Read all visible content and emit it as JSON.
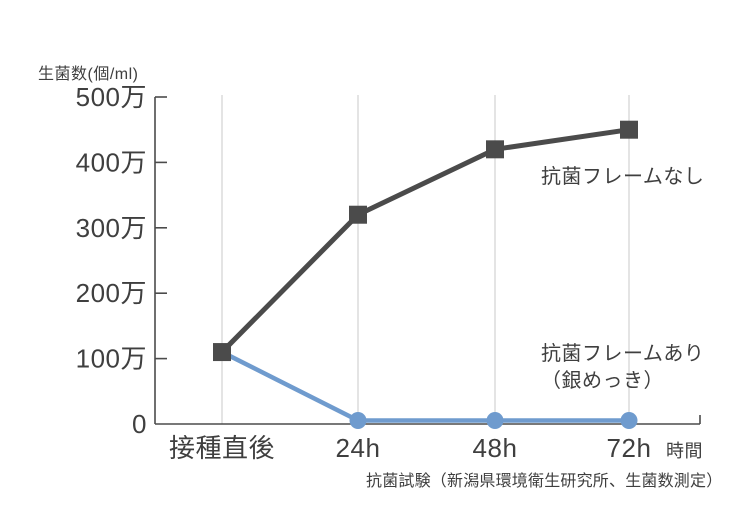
{
  "colors": {
    "background": "#ffffff",
    "axis": "#4b4b4b",
    "grid": "#dcdcdc",
    "text": "#3f3f3f",
    "series_no_frame": "#4b4b4b",
    "series_with_frame": "#6f9bce"
  },
  "chart_data": {
    "type": "line",
    "title": "",
    "ylabel": "生菌数(個/ml)",
    "xlabel": "時間",
    "categories": [
      "接種直後",
      "24h",
      "48h",
      "72h"
    ],
    "y_ticks": [
      {
        "label": "500万",
        "value": 5000000
      },
      {
        "label": "400万",
        "value": 4000000
      },
      {
        "label": "300万",
        "value": 3000000
      },
      {
        "label": "200万",
        "value": 2000000
      },
      {
        "label": "100万",
        "value": 1000000
      },
      {
        "label": "0",
        "value": 0
      }
    ],
    "ylim": [
      0,
      5000000
    ],
    "grid": "vertical light gray lines at each x category",
    "legend_position": "inline annotations right of lines",
    "series": [
      {
        "name": "抗菌フレームなし",
        "marker": "square",
        "color": "#4b4b4b",
        "values": [
          1100000,
          3200000,
          4200000,
          4500000
        ]
      },
      {
        "name": "抗菌フレームあり（銀めっき）",
        "marker": "circle",
        "color": "#6f9bce",
        "values": [
          1100000,
          0,
          0,
          0
        ]
      }
    ]
  },
  "annotations": {
    "series_no_frame": "抗菌フレームなし",
    "series_with_frame_line1": "抗菌フレームあり",
    "series_with_frame_line2": "（銀めっき）"
  },
  "caption": "抗菌試験（新潟県環境衛生研究所、生菌数測定）"
}
